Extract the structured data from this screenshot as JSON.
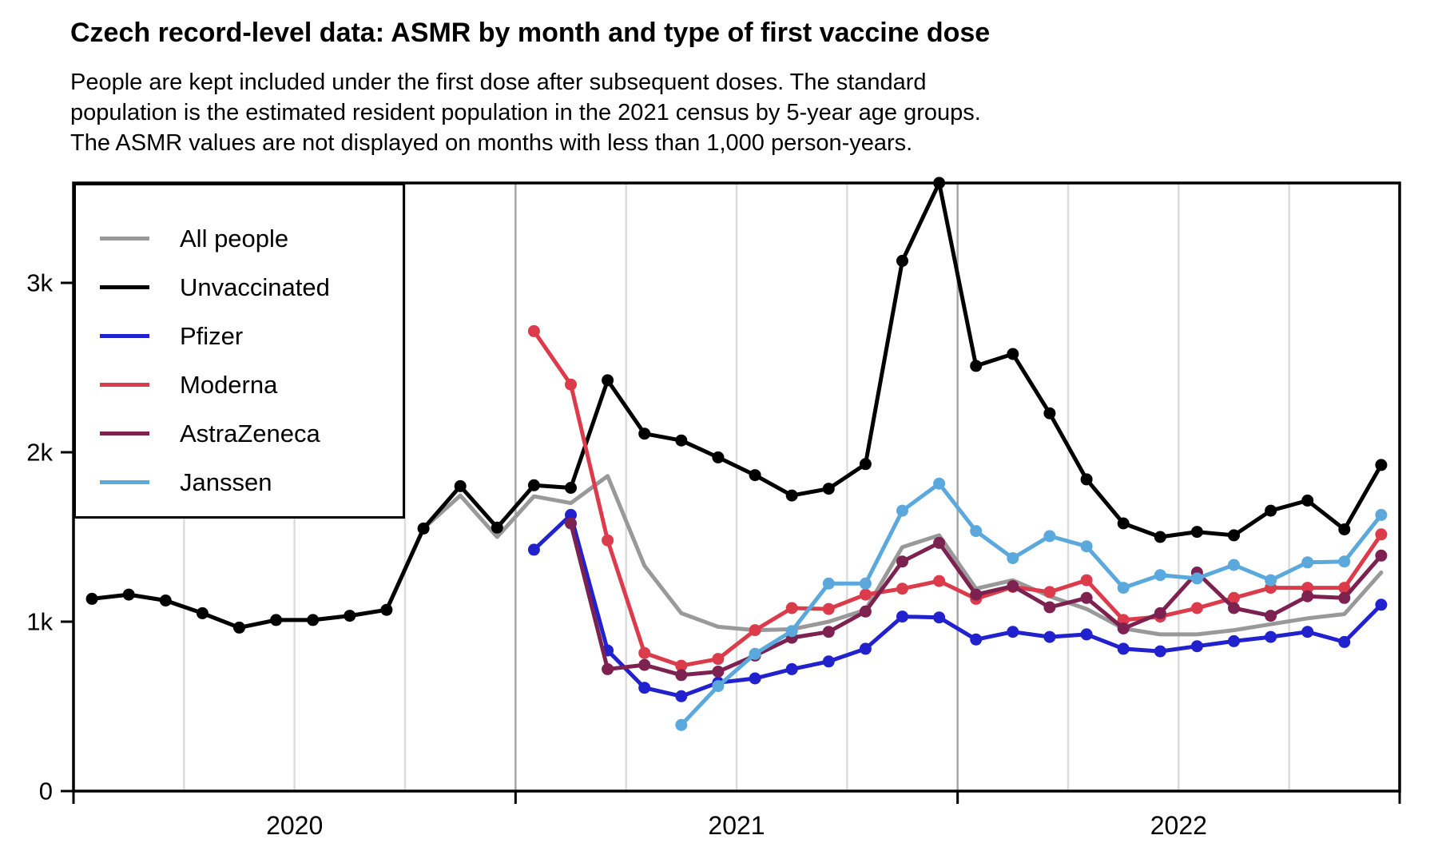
{
  "title": "Czech record-level data: ASMR by month and type of first vaccine dose",
  "subtitle_lines": [
    "People are kept included under the first dose after subsequent doses. The standard",
    "population is the estimated resident population in the 2021 census by 5-year age groups.",
    "The ASMR values are not displayed on months with less than 1,000 person-years."
  ],
  "chart_data": {
    "type": "line",
    "title": "Czech record-level data: ASMR by month and type of first vaccine dose",
    "xlabel": "",
    "ylabel": "",
    "ylim": [
      0,
      3590
    ],
    "grid": "vertical quarterly gridlines, darker at year boundaries",
    "legend_position": "top-left inside plot",
    "x_years": [
      "2020",
      "2021",
      "2022"
    ],
    "y_ticks": [
      {
        "value": 0,
        "label": "0"
      },
      {
        "value": 1000,
        "label": "1k"
      },
      {
        "value": 2000,
        "label": "2k"
      },
      {
        "value": 3000,
        "label": "3k"
      }
    ],
    "months": [
      "2020-01",
      "2020-02",
      "2020-03",
      "2020-04",
      "2020-05",
      "2020-06",
      "2020-07",
      "2020-08",
      "2020-09",
      "2020-10",
      "2020-11",
      "2020-12",
      "2021-01",
      "2021-02",
      "2021-03",
      "2021-04",
      "2021-05",
      "2021-06",
      "2021-07",
      "2021-08",
      "2021-09",
      "2021-10",
      "2021-11",
      "2021-12",
      "2022-01",
      "2022-02",
      "2022-03",
      "2022-04",
      "2022-05",
      "2022-06",
      "2022-07",
      "2022-08",
      "2022-09",
      "2022-10",
      "2022-11",
      "2022-12"
    ],
    "series": [
      {
        "name": "All people",
        "key": "all-people",
        "color": "#999999",
        "dots": false,
        "values": [
          1135,
          1160,
          1125,
          1050,
          965,
          1010,
          1010,
          1035,
          1070,
          1550,
          1745,
          1500,
          1740,
          1700,
          1860,
          1330,
          1050,
          970,
          950,
          955,
          1000,
          1070,
          1440,
          1510,
          1195,
          1245,
          1150,
          1075,
          960,
          925,
          925,
          950,
          985,
          1020,
          1045,
          1290
        ]
      },
      {
        "name": "Unvaccinated",
        "key": "unvaccinated",
        "color": "#000000",
        "dots": true,
        "values": [
          1135,
          1160,
          1125,
          1050,
          965,
          1010,
          1010,
          1035,
          1070,
          1550,
          1800,
          1555,
          1805,
          1790,
          2425,
          2110,
          2070,
          1970,
          1865,
          1745,
          1785,
          1930,
          3130,
          3590,
          2510,
          2580,
          2230,
          1840,
          1580,
          1500,
          1530,
          1510,
          1655,
          1715,
          1545,
          1925
        ]
      },
      {
        "name": "Pfizer",
        "key": "pfizer",
        "color": "#2121CE",
        "dots": true,
        "values": [
          null,
          null,
          null,
          null,
          null,
          null,
          null,
          null,
          null,
          null,
          null,
          null,
          1425,
          1630,
          830,
          610,
          560,
          640,
          665,
          720,
          765,
          840,
          1030,
          1025,
          895,
          940,
          910,
          925,
          840,
          825,
          855,
          885,
          910,
          940,
          880,
          1100
        ]
      },
      {
        "name": "Moderna",
        "key": "moderna",
        "color": "#DB3B4B",
        "dots": true,
        "values": [
          null,
          null,
          null,
          null,
          null,
          null,
          null,
          null,
          null,
          null,
          null,
          null,
          2715,
          2400,
          1480,
          815,
          740,
          780,
          950,
          1080,
          1075,
          1160,
          1195,
          1240,
          1135,
          1205,
          1175,
          1245,
          1010,
          1030,
          1080,
          1140,
          1200,
          1200,
          1200,
          1515
        ]
      },
      {
        "name": "AstraZeneca",
        "key": "astrazeneca",
        "color": "#7C2150",
        "dots": true,
        "values": [
          null,
          null,
          null,
          null,
          null,
          null,
          null,
          null,
          null,
          null,
          null,
          null,
          null,
          1580,
          720,
          745,
          685,
          705,
          800,
          905,
          940,
          1060,
          1355,
          1465,
          1160,
          1210,
          1085,
          1140,
          960,
          1050,
          1290,
          1080,
          1035,
          1150,
          1140,
          1390
        ]
      },
      {
        "name": "Janssen",
        "key": "janssen",
        "color": "#5BA9DC",
        "dots": true,
        "values": [
          null,
          null,
          null,
          null,
          null,
          null,
          null,
          null,
          null,
          null,
          null,
          null,
          null,
          null,
          null,
          null,
          390,
          620,
          810,
          945,
          1225,
          1225,
          1655,
          1815,
          1535,
          1375,
          1505,
          1445,
          1200,
          1275,
          1255,
          1335,
          1245,
          1350,
          1355,
          1630
        ]
      }
    ]
  }
}
